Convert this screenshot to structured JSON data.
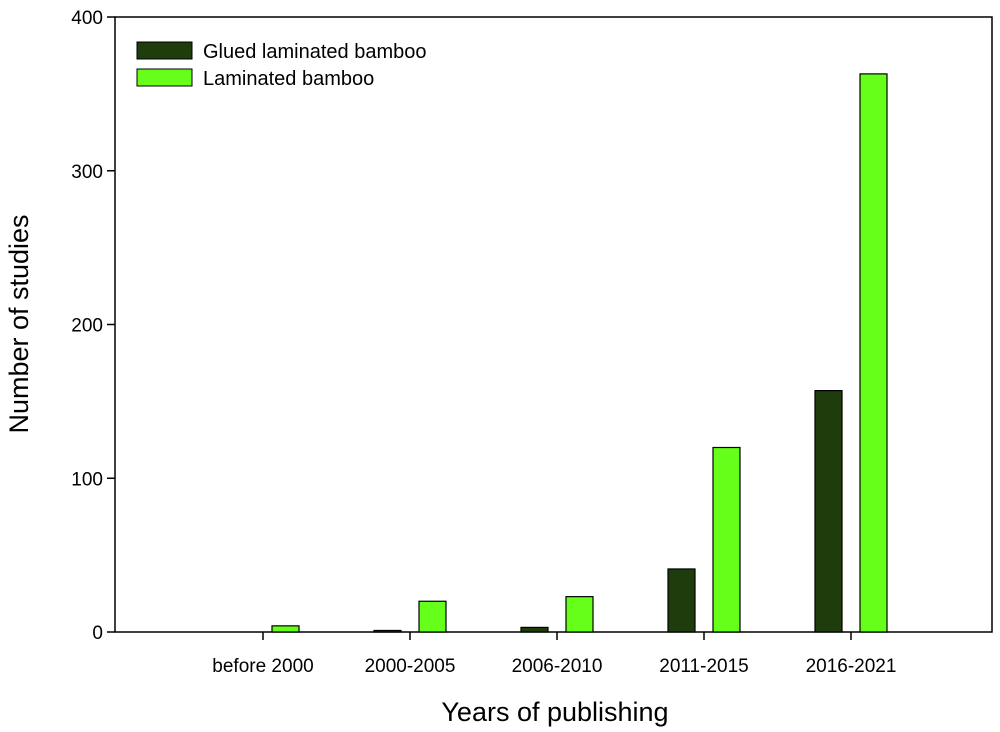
{
  "chart_data": {
    "type": "bar",
    "xlabel": "Years of publishing",
    "ylabel": "Number of studies",
    "ylim": [
      0,
      400
    ],
    "yticks": [
      0,
      100,
      200,
      300,
      400
    ],
    "categories": [
      "before 2000",
      "2000-2005",
      "2006-2010",
      "2011-2015",
      "2016-2021"
    ],
    "series": [
      {
        "name": "Glued laminated bamboo",
        "color": "#1f3d0c",
        "values": [
          0,
          1,
          3,
          41,
          157
        ]
      },
      {
        "name": "Laminated bamboo",
        "color": "#66ff1a",
        "values": [
          4,
          20,
          23,
          120,
          363
        ]
      }
    ],
    "legend": "top-left",
    "grid": false
  }
}
